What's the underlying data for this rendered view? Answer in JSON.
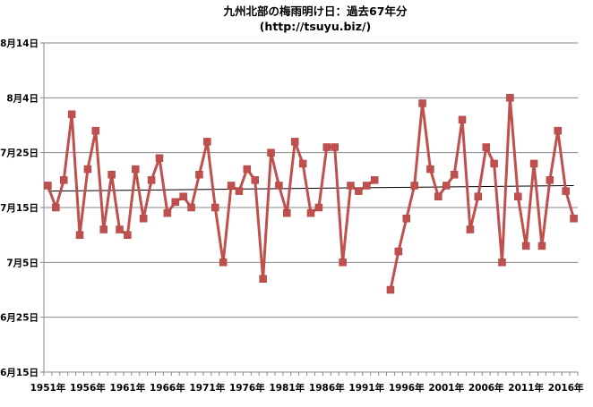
{
  "chart_data": {
    "type": "line",
    "title": "九州北部の梅雨明け日：過去67年分",
    "subtitle": "(http://tsuyu.biz/)",
    "xlabel": "",
    "ylabel": "",
    "x": [
      1951,
      1952,
      1953,
      1954,
      1955,
      1956,
      1957,
      1958,
      1959,
      1960,
      1961,
      1962,
      1963,
      1964,
      1965,
      1966,
      1967,
      1968,
      1969,
      1970,
      1971,
      1972,
      1973,
      1974,
      1975,
      1976,
      1977,
      1978,
      1979,
      1980,
      1981,
      1982,
      1983,
      1984,
      1985,
      1986,
      1987,
      1988,
      1989,
      1990,
      1991,
      1992,
      1993,
      1994,
      1995,
      1996,
      1997,
      1998,
      1999,
      2000,
      2001,
      2002,
      2003,
      2004,
      2005,
      2006,
      2007,
      2008,
      2009,
      2010,
      2011,
      2012,
      2013,
      2014,
      2015,
      2016,
      2017
    ],
    "series": [
      {
        "name": "",
        "color": "#c0504d",
        "values": [
          "7/19",
          "7/15",
          "7/20",
          "8/1",
          "7/10",
          "7/22",
          "7/29",
          "7/11",
          "7/21",
          "7/11",
          "7/10",
          "7/22",
          "7/13",
          "7/20",
          "7/24",
          "7/14",
          "7/16",
          "7/17",
          "7/15",
          "7/21",
          "7/27",
          "7/15",
          "7/5",
          "7/19",
          "7/18",
          "7/22",
          "7/20",
          "7/2",
          "7/25",
          "7/19",
          "7/14",
          "7/27",
          "7/23",
          "7/14",
          "7/15",
          "7/26",
          "7/26",
          "7/5",
          "7/19",
          "7/18",
          "7/19",
          "7/20",
          null,
          "6/30",
          "7/7",
          "7/13",
          "7/19",
          "8/3",
          "7/22",
          "7/17",
          "7/19",
          "7/21",
          "7/31",
          "7/11",
          "7/17",
          "7/26",
          "7/23",
          "7/5",
          "8/4",
          "7/17",
          "7/8",
          "7/23",
          "7/8",
          "7/20",
          "7/29",
          "7/18",
          "7/13"
        ]
      }
    ],
    "trendline": {
      "color": "#000000",
      "start": "7/18",
      "end": "7/19"
    },
    "y_ticks": [
      "6月15日",
      "6月25日",
      "7月5日",
      "7月15日",
      "7月25日",
      "8月4日",
      "8月14日"
    ],
    "x_ticks": [
      "1951年",
      "1956年",
      "1961年",
      "1966年",
      "1971年",
      "1976年",
      "1981年",
      "1986年",
      "1991年",
      "1996年",
      "2001年",
      "2006年",
      "2011年",
      "2016年"
    ],
    "ylim": [
      "6/15",
      "8/14"
    ],
    "xlim": [
      1951,
      2017
    ],
    "grid": true,
    "colors": {
      "grid": "#888888",
      "axis": "#888888",
      "line": "#c0504d",
      "marker": "#c0504d"
    }
  }
}
